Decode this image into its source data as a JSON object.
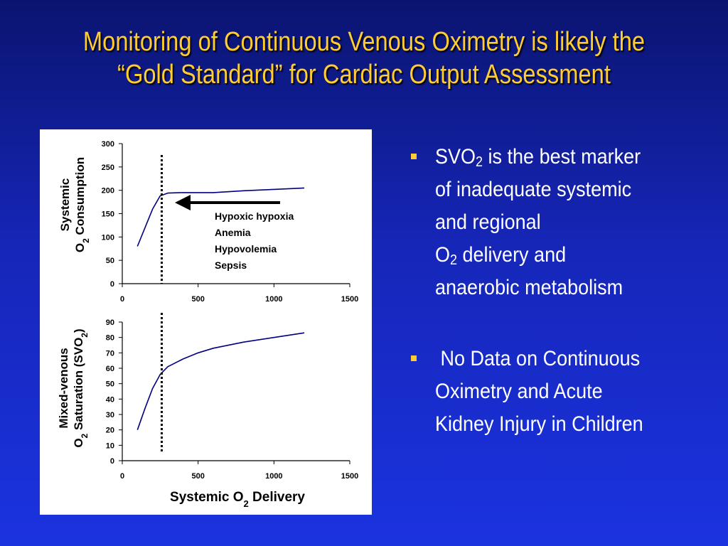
{
  "slide": {
    "title_line1": "Monitoring of Continuous Venous Oximetry is likely the",
    "title_line2": "“Gold Standard” for Cardiac Output Assessment"
  },
  "bullets": [
    {
      "lines": [
        {
          "pre": "SVO",
          "sub": "2",
          "post": " is the best marker"
        },
        {
          "pre": "of inadequate systemic",
          "sub": "",
          "post": ""
        },
        {
          "pre": "and regional",
          "sub": "",
          "post": ""
        },
        {
          "pre": "O",
          "sub": "2",
          "post": " delivery and"
        },
        {
          "pre": "anaerobic metabolism",
          "sub": "",
          "post": ""
        }
      ]
    },
    {
      "lines": [
        {
          "pre": " No Data on Continuous",
          "sub": "",
          "post": ""
        },
        {
          "pre": "Oximetry and Acute",
          "sub": "",
          "post": ""
        },
        {
          "pre": "Kidney Injury in Children",
          "sub": "",
          "post": ""
        }
      ]
    }
  ],
  "colors": {
    "title": "#ffcc33",
    "curve": "#000080",
    "bullet_mark": "#ffcc33"
  },
  "chart_data": [
    {
      "type": "line",
      "ylabel_line1": "Systemic",
      "ylabel_line2_pre": "O",
      "ylabel_line2_sub": "2",
      "ylabel_line2_post": " Consumption",
      "xlabel": "",
      "xlim": [
        0,
        1500
      ],
      "ylim": [
        0,
        300
      ],
      "xticks": [
        0,
        500,
        1000,
        1500
      ],
      "yticks": [
        0,
        50,
        100,
        150,
        200,
        250,
        300
      ],
      "x": [
        100,
        150,
        200,
        250,
        300,
        400,
        600,
        800,
        1000,
        1200
      ],
      "y": [
        80,
        120,
        160,
        188,
        194,
        195,
        195,
        199,
        202,
        205
      ],
      "annotation_lines": [
        "Hypoxic hypoxia",
        "Anemia",
        "Hypovolemia",
        "Sepsis"
      ],
      "vline_x": 260
    },
    {
      "type": "line",
      "ylabel_line1": "Mixed-venous",
      "ylabel_line2_pre": "O",
      "ylabel_line2_sub": "2",
      "ylabel_line2_post": " Saturation (SVO",
      "ylabel_line2_sub2": "2",
      "ylabel_line2_end": ")",
      "xlabel_pre": "Systemic O",
      "xlabel_sub": "2",
      "xlabel_post": " Delivery",
      "xlim": [
        0,
        1500
      ],
      "ylim": [
        0,
        90
      ],
      "xticks": [
        0,
        500,
        1000,
        1500
      ],
      "yticks": [
        0,
        10,
        20,
        30,
        40,
        50,
        60,
        70,
        80,
        90
      ],
      "x": [
        100,
        150,
        200,
        250,
        300,
        400,
        500,
        600,
        800,
        1000,
        1200
      ],
      "y": [
        20,
        34,
        47,
        56,
        61,
        66,
        70,
        73,
        77,
        80,
        83
      ],
      "vline_x": 260
    }
  ]
}
